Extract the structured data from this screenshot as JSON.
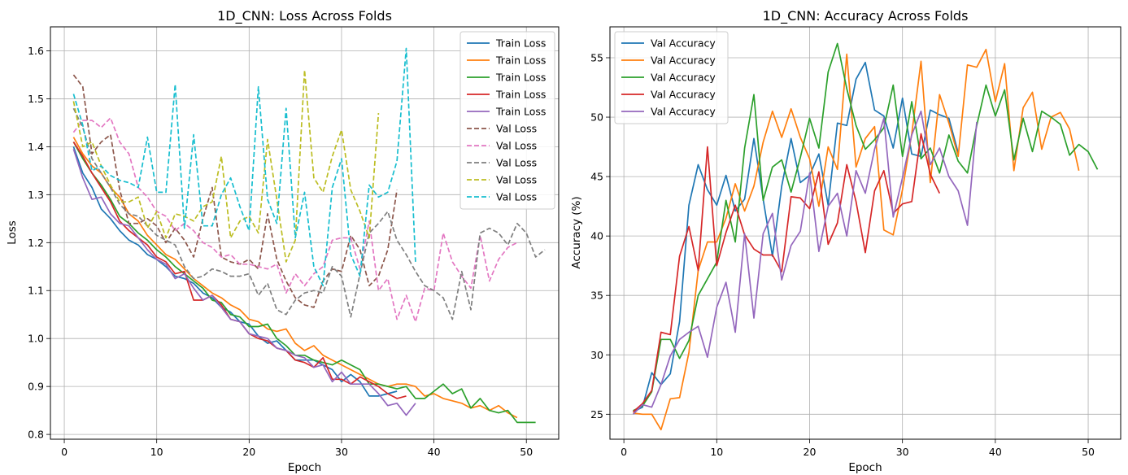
{
  "colors": {
    "train": [
      "#1f77b4",
      "#ff7f0e",
      "#2ca02c",
      "#d62728",
      "#9467bd"
    ],
    "val_loss": [
      "#8c564b",
      "#e377c2",
      "#7f7f7f",
      "#bcbd22",
      "#17becf"
    ],
    "grid": "#b0b0b0"
  },
  "chart_data": [
    {
      "type": "line",
      "title": "1D_CNN: Loss Across Folds",
      "xlabel": "Epoch",
      "ylabel": "Loss",
      "xlim": [
        -1.5,
        53.5
      ],
      "ylim": [
        0.79,
        1.65
      ],
      "xticks": [
        0,
        10,
        20,
        30,
        40,
        50
      ],
      "yticks": [
        0.8,
        0.9,
        1.0,
        1.1,
        1.2,
        1.3,
        1.4,
        1.5,
        1.6
      ],
      "ytick_labels": [
        "0.8",
        "0.9",
        "1.0",
        "1.1",
        "1.2",
        "1.3",
        "1.4",
        "1.5",
        "1.6"
      ],
      "grid": true,
      "legend_position": "top-right",
      "series": [
        {
          "name": "Train Loss",
          "style": "solid",
          "y": [
            1.4,
            1.345,
            1.315,
            1.27,
            1.25,
            1.225,
            1.205,
            1.195,
            1.175,
            1.165,
            1.15,
            1.13,
            1.125,
            1.115,
            1.095,
            1.085,
            1.065,
            1.055,
            1.035,
            1.03,
            1.005,
            0.99,
            0.995,
            0.975,
            0.955,
            0.955,
            0.955,
            0.945,
            0.935,
            0.91,
            0.925,
            0.91,
            0.88,
            0.88,
            0.885,
            0.89
          ]
        },
        {
          "name": "Train Loss",
          "style": "solid",
          "y": [
            1.42,
            1.385,
            1.36,
            1.345,
            1.315,
            1.295,
            1.26,
            1.245,
            1.215,
            1.195,
            1.175,
            1.165,
            1.145,
            1.125,
            1.11,
            1.095,
            1.085,
            1.07,
            1.06,
            1.04,
            1.035,
            1.02,
            1.015,
            1.02,
            0.99,
            0.975,
            0.985,
            0.965,
            0.955,
            0.945,
            0.935,
            0.925,
            0.915,
            0.905,
            0.9,
            0.905,
            0.905,
            0.9,
            0.88,
            0.885,
            0.875,
            0.87,
            0.865,
            0.855,
            0.86,
            0.85,
            0.86,
            0.845,
            0.835
          ]
        },
        {
          "name": "Train Loss",
          "style": "solid",
          "y": [
            1.41,
            1.375,
            1.345,
            1.32,
            1.29,
            1.255,
            1.24,
            1.22,
            1.205,
            1.185,
            1.17,
            1.15,
            1.135,
            1.12,
            1.105,
            1.08,
            1.075,
            1.05,
            1.045,
            1.025,
            1.025,
            1.03,
            1.0,
            0.985,
            0.965,
            0.965,
            0.955,
            0.95,
            0.945,
            0.955,
            0.945,
            0.935,
            0.905,
            0.905,
            0.9,
            0.895,
            0.9,
            0.875,
            0.875,
            0.89,
            0.905,
            0.885,
            0.895,
            0.855,
            0.875,
            0.85,
            0.845,
            0.85,
            0.825,
            0.825,
            0.825
          ]
        },
        {
          "name": "Train Loss",
          "style": "solid",
          "y": [
            1.41,
            1.38,
            1.345,
            1.315,
            1.285,
            1.245,
            1.225,
            1.21,
            1.195,
            1.17,
            1.16,
            1.135,
            1.14,
            1.08,
            1.08,
            1.09,
            1.07,
            1.04,
            1.035,
            1.01,
            1.0,
            0.995,
            0.98,
            0.975,
            0.955,
            0.95,
            0.94,
            0.96,
            0.915,
            0.915,
            0.905,
            0.92,
            0.91,
            0.9,
            0.885,
            0.875,
            0.88
          ]
        },
        {
          "name": "Train Loss",
          "style": "solid",
          "y": [
            1.395,
            1.335,
            1.29,
            1.295,
            1.26,
            1.24,
            1.235,
            1.21,
            1.185,
            1.165,
            1.155,
            1.125,
            1.135,
            1.105,
            1.08,
            1.09,
            1.065,
            1.04,
            1.035,
            1.01,
            1.005,
            1.0,
            0.98,
            0.975,
            0.965,
            0.96,
            0.94,
            0.945,
            0.91,
            0.93,
            0.905,
            0.905,
            0.905,
            0.885,
            0.86,
            0.865,
            0.84,
            0.865
          ]
        },
        {
          "name": "Val Loss",
          "style": "dashed",
          "y": [
            1.55,
            1.525,
            1.385,
            1.41,
            1.425,
            1.31,
            1.24,
            1.24,
            1.25,
            1.235,
            1.2,
            1.23,
            1.205,
            1.17,
            1.25,
            1.315,
            1.17,
            1.16,
            1.155,
            1.165,
            1.145,
            1.26,
            1.165,
            1.12,
            1.085,
            1.07,
            1.065,
            1.12,
            1.145,
            1.14,
            1.215,
            1.185,
            1.11,
            1.13,
            1.185,
            1.31
          ]
        },
        {
          "name": "Val Loss",
          "style": "dashed",
          "y": [
            1.43,
            1.455,
            1.455,
            1.44,
            1.46,
            1.41,
            1.385,
            1.315,
            1.295,
            1.265,
            1.255,
            1.225,
            1.24,
            1.225,
            1.2,
            1.19,
            1.17,
            1.175,
            1.155,
            1.155,
            1.15,
            1.145,
            1.155,
            1.095,
            1.135,
            1.11,
            1.135,
            1.15,
            1.205,
            1.21,
            1.21,
            1.145,
            1.245,
            1.1,
            1.125,
            1.04,
            1.09,
            1.035,
            1.105,
            1.1,
            1.22,
            1.16,
            1.13,
            1.105,
            1.215,
            1.12,
            1.165,
            1.19,
            1.2
          ]
        },
        {
          "name": "Val Loss",
          "style": "dashed",
          "y": [
            1.48,
            1.44,
            1.375,
            1.345,
            1.315,
            1.28,
            1.26,
            1.255,
            1.235,
            1.215,
            1.205,
            1.195,
            1.15,
            1.125,
            1.13,
            1.145,
            1.14,
            1.13,
            1.13,
            1.135,
            1.09,
            1.115,
            1.06,
            1.05,
            1.08,
            1.095,
            1.1,
            1.095,
            1.15,
            1.13,
            1.045,
            1.135,
            1.22,
            1.24,
            1.265,
            1.205,
            1.175,
            1.14,
            1.11,
            1.1,
            1.085,
            1.04,
            1.14,
            1.06,
            1.22,
            1.23,
            1.22,
            1.195,
            1.24,
            1.22,
            1.17,
            1.185
          ]
        },
        {
          "name": "Val Loss",
          "style": "dashed",
          "y": [
            1.495,
            1.4,
            1.41,
            1.36,
            1.32,
            1.285,
            1.285,
            1.295,
            1.23,
            1.265,
            1.21,
            1.26,
            1.255,
            1.245,
            1.275,
            1.285,
            1.38,
            1.21,
            1.245,
            1.255,
            1.22,
            1.415,
            1.29,
            1.16,
            1.205,
            1.56,
            1.335,
            1.305,
            1.38,
            1.435,
            1.31,
            1.265,
            1.21,
            1.47
          ]
        },
        {
          "name": "Val Loss",
          "style": "dashed",
          "y": [
            1.51,
            1.445,
            1.35,
            1.36,
            1.34,
            1.33,
            1.325,
            1.315,
            1.42,
            1.305,
            1.305,
            1.53,
            1.23,
            1.425,
            1.235,
            1.235,
            1.3,
            1.335,
            1.275,
            1.225,
            1.525,
            1.29,
            1.24,
            1.48,
            1.21,
            1.305,
            1.15,
            1.11,
            1.315,
            1.375,
            1.175,
            1.13,
            1.32,
            1.295,
            1.305,
            1.37,
            1.605,
            1.16
          ]
        }
      ]
    },
    {
      "type": "line",
      "title": "1D_CNN: Accuracy Across Folds",
      "xlabel": "Epoch",
      "ylabel": "Accuracy (%)",
      "xlim": [
        -1.5,
        53.5
      ],
      "ylim": [
        22.9,
        57.6
      ],
      "xticks": [
        0,
        10,
        20,
        30,
        40,
        50
      ],
      "yticks": [
        25,
        30,
        35,
        40,
        45,
        50,
        55
      ],
      "ytick_labels": [
        "25",
        "30",
        "35",
        "40",
        "45",
        "50",
        "55"
      ],
      "grid": true,
      "legend_position": "top-left",
      "series": [
        {
          "name": "Val Accuracy",
          "style": "solid",
          "y": [
            25.2,
            25.6,
            28.5,
            27.5,
            28.4,
            32.8,
            42.6,
            46.0,
            43.9,
            42.6,
            45.1,
            42.1,
            43.1,
            48.2,
            43.1,
            38.3,
            44.2,
            48.2,
            44.5,
            45.1,
            46.9,
            42.6,
            49.5,
            49.3,
            53.2,
            54.6,
            50.6,
            50.1,
            47.4,
            51.6,
            46.9,
            46.7,
            50.6,
            50.2,
            49.9,
            47.0
          ]
        },
        {
          "name": "Val Accuracy",
          "style": "solid",
          "y": [
            25.1,
            25.0,
            25.0,
            23.7,
            26.3,
            26.4,
            30.2,
            37.1,
            39.5,
            39.5,
            41.5,
            44.4,
            42.1,
            44.2,
            47.9,
            50.5,
            48.3,
            50.7,
            48.3,
            46.5,
            42.5,
            47.5,
            45.6,
            55.3,
            45.8,
            48.2,
            49.2,
            40.5,
            40.1,
            43.9,
            48.6,
            54.7,
            44.5,
            51.9,
            49.5,
            46.7,
            54.4,
            54.2,
            55.7,
            51.3,
            54.5,
            45.5,
            50.8,
            52.1,
            47.3,
            50.0,
            50.4,
            49.0,
            45.5
          ]
        },
        {
          "name": "Val Accuracy",
          "style": "solid",
          "y": [
            25.3,
            25.7,
            26.9,
            31.3,
            31.3,
            29.7,
            31.2,
            35.0,
            36.4,
            37.8,
            43.0,
            39.5,
            47.4,
            51.9,
            43.0,
            45.8,
            46.4,
            43.7,
            46.6,
            49.9,
            47.4,
            53.8,
            56.2,
            52.4,
            49.3,
            47.3,
            48.1,
            49.1,
            52.7,
            46.7,
            51.3,
            46.5,
            47.4,
            45.3,
            48.5,
            46.3,
            45.3,
            49.3,
            52.7,
            50.1,
            52.3,
            46.4,
            49.9,
            47.1,
            50.5,
            50.0,
            49.4,
            46.8,
            47.7,
            47.1,
            45.6
          ]
        },
        {
          "name": "Val Accuracy",
          "style": "solid",
          "y": [
            25.2,
            25.9,
            27.0,
            31.9,
            31.7,
            38.3,
            40.8,
            37.1,
            47.5,
            37.5,
            40.3,
            42.6,
            40.1,
            38.9,
            38.4,
            38.4,
            37.0,
            43.3,
            43.2,
            42.3,
            45.4,
            39.3,
            41.1,
            46.0,
            42.9,
            38.6,
            43.8,
            45.5,
            41.9,
            42.7,
            42.9,
            48.6,
            45.2,
            43.6
          ]
        },
        {
          "name": "Val Accuracy",
          "style": "solid",
          "y": [
            25.0,
            25.8,
            25.6,
            27.5,
            29.9,
            31.3,
            31.9,
            32.4,
            29.8,
            34.0,
            36.1,
            31.9,
            40.2,
            33.1,
            40.2,
            41.9,
            36.3,
            39.2,
            40.4,
            45.3,
            38.7,
            42.5,
            43.6,
            40.0,
            45.5,
            43.6,
            47.3,
            49.9,
            41.6,
            44.9,
            48.5,
            50.5,
            46.0,
            47.4,
            45.0,
            43.8,
            40.9,
            49.6
          ]
        }
      ]
    }
  ]
}
